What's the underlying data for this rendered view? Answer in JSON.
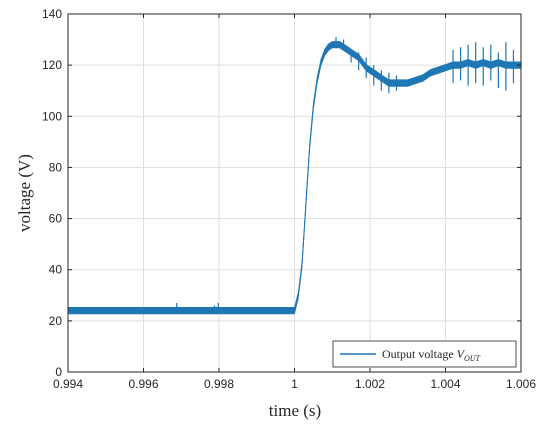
{
  "chart_data": {
    "type": "line",
    "xlabel": "time (s)",
    "ylabel": "voltage (V)",
    "xlim": [
      0.994,
      1.006
    ],
    "ylim": [
      0,
      140
    ],
    "xticks": [
      "0.994",
      "0.996",
      "0.998",
      "1",
      "1.002",
      "1.004",
      "1.006"
    ],
    "yticks": [
      "0",
      "20",
      "40",
      "60",
      "80",
      "100",
      "120",
      "140"
    ],
    "grid": true,
    "legend": {
      "position": "bottom-right",
      "text": "Output voltage ",
      "symbol_base": "V",
      "symbol_sub": "OUT"
    },
    "series_color": "#1f77b4",
    "series": [
      {
        "name": "Output voltage V_OUT",
        "x": [
          0.994,
          0.995,
          0.996,
          0.997,
          0.998,
          0.999,
          1.0,
          1.0001,
          1.0002,
          1.0003,
          1.0004,
          1.0005,
          1.0006,
          1.0007,
          1.0008,
          1.0009,
          1.001,
          1.0011,
          1.0012,
          1.0013,
          1.0014,
          1.0015,
          1.0016,
          1.0017,
          1.0018,
          1.0019,
          1.002,
          1.0021,
          1.0022,
          1.0023,
          1.0024,
          1.0025,
          1.0026,
          1.0028,
          1.003,
          1.0032,
          1.0034,
          1.0036,
          1.0038,
          1.004,
          1.0042,
          1.0044,
          1.0046,
          1.0048,
          1.005,
          1.0052,
          1.0054,
          1.0056,
          1.0058,
          1.006
        ],
        "y": [
          24,
          24,
          24,
          24,
          24,
          24,
          24,
          30,
          42,
          65,
          88,
          104,
          114,
          121,
          125,
          127,
          128,
          128,
          128,
          127,
          126,
          125,
          124,
          123,
          121,
          119,
          118,
          117,
          116,
          115,
          114,
          113,
          113,
          113,
          113,
          114,
          115,
          117,
          118,
          119,
          120,
          120,
          121,
          120,
          121,
          120,
          121,
          120,
          120,
          120
        ],
        "band_halfwidth": 1.3
      }
    ],
    "spikes": [
      {
        "x": 0.99688,
        "ymin": 23,
        "ymax": 27
      },
      {
        "x": 0.99788,
        "ymin": 23,
        "ymax": 26
      },
      {
        "x": 0.99798,
        "ymin": 23,
        "ymax": 27
      },
      {
        "x": 1.0011,
        "ymin": 127,
        "ymax": 131
      },
      {
        "x": 1.0013,
        "ymin": 126,
        "ymax": 130
      },
      {
        "x": 1.0015,
        "ymin": 121,
        "ymax": 126
      },
      {
        "x": 1.0017,
        "ymin": 118,
        "ymax": 125
      },
      {
        "x": 1.0019,
        "ymin": 115,
        "ymax": 123
      },
      {
        "x": 1.0021,
        "ymin": 112,
        "ymax": 120
      },
      {
        "x": 1.0023,
        "ymin": 110,
        "ymax": 118
      },
      {
        "x": 1.0025,
        "ymin": 109,
        "ymax": 117
      },
      {
        "x": 1.0027,
        "ymin": 110,
        "ymax": 116
      },
      {
        "x": 1.0042,
        "ymin": 113,
        "ymax": 126
      },
      {
        "x": 1.0044,
        "ymin": 114,
        "ymax": 127
      },
      {
        "x": 1.0046,
        "ymin": 112,
        "ymax": 128
      },
      {
        "x": 1.0048,
        "ymin": 113,
        "ymax": 129
      },
      {
        "x": 1.005,
        "ymin": 112,
        "ymax": 127
      },
      {
        "x": 1.0052,
        "ymin": 114,
        "ymax": 128
      },
      {
        "x": 1.0054,
        "ymin": 111,
        "ymax": 125
      },
      {
        "x": 1.0056,
        "ymin": 110,
        "ymax": 129
      },
      {
        "x": 1.0058,
        "ymin": 113,
        "ymax": 126
      }
    ]
  }
}
